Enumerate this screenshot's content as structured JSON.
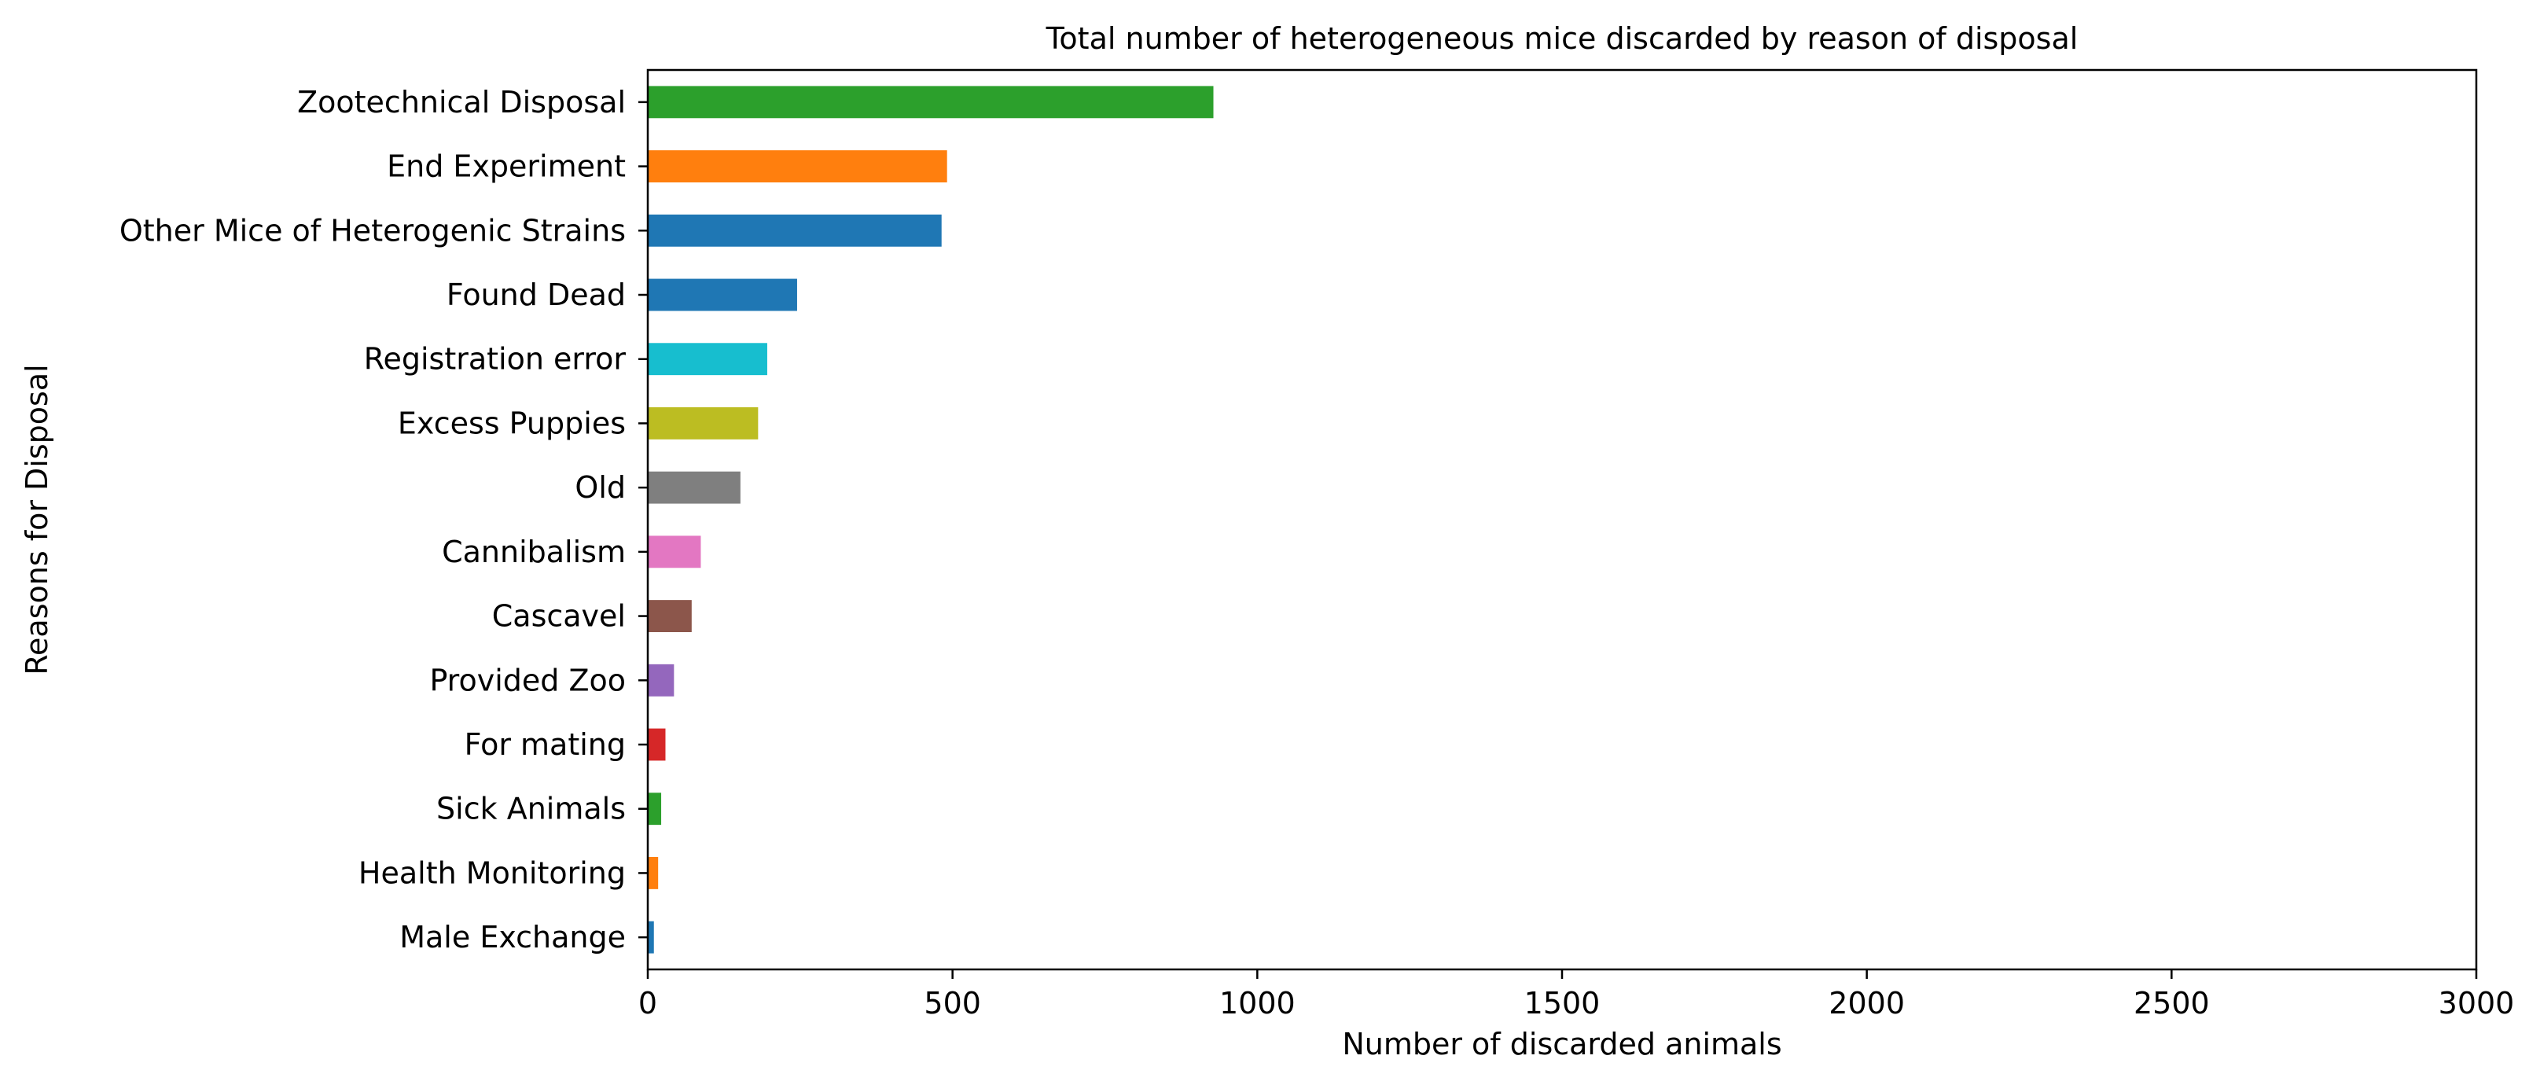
{
  "chart_data": {
    "type": "bar",
    "orientation": "horizontal",
    "title": "Total number of heterogeneous mice discarded by reason of disposal",
    "xlabel": "Number of discarded animals",
    "ylabel": "Reasons for Disposal",
    "xlim": [
      0,
      3000
    ],
    "xticks": [
      "0",
      "500",
      "1000",
      "1500",
      "2000",
      "2500",
      "3000"
    ],
    "grid": false,
    "legend": "none",
    "categories": [
      "Male Exchange",
      "Health Monitoring",
      "Sick Animals",
      "For mating",
      "Provided Zoo",
      "Cascavel",
      "Cannibalism",
      "Old",
      "Excess Puppies",
      "Registration error",
      "Found Dead",
      "Other Mice of Heterogenic Strains",
      "End Experiment",
      "Zootechnical Disposal"
    ],
    "values": [
      10,
      17,
      22,
      29,
      43,
      72,
      87,
      152,
      181,
      196,
      245,
      482,
      491,
      928
    ],
    "colors": [
      "#1f77b4",
      "#ff7f0e",
      "#2ca02c",
      "#d62728",
      "#9467bd",
      "#8c564b",
      "#e377c2",
      "#7f7f7f",
      "#bcbd22",
      "#17becf",
      "#1f77b4",
      "#1f77b4",
      "#ff7f0e",
      "#2ca02c"
    ]
  }
}
